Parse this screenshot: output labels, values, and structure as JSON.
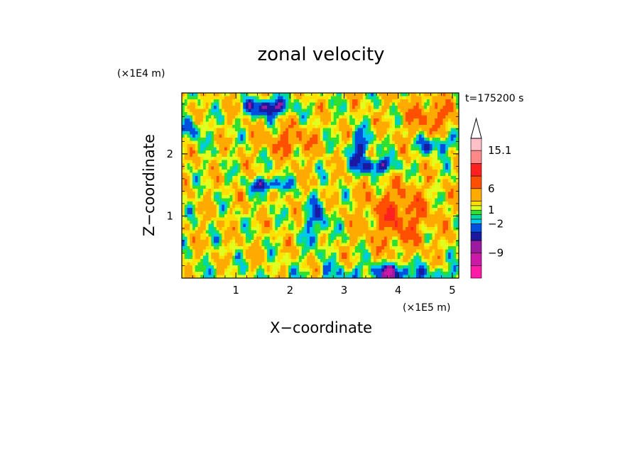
{
  "chart_data": {
    "type": "heatmap",
    "title": "zonal velocity",
    "xlabel": "X−coordinate",
    "ylabel": "Z−coordinate",
    "x_scale_label": "(×1E5 m)",
    "y_scale_label": "(×1E4 m)",
    "time_label": "t=175200 s",
    "xlim": [
      0,
      5.12
    ],
    "ylim": [
      0,
      2.98
    ],
    "x_ticks": [
      1,
      2,
      3,
      4,
      5
    ],
    "y_ticks": [
      1,
      2
    ],
    "x_tick_labels": [
      "1",
      "2",
      "3",
      "4",
      "5"
    ],
    "y_tick_labels": [
      "1",
      "2"
    ],
    "colorbar": {
      "bins": [
        {
          "lo": -15,
          "hi": -12,
          "color": "#ff1aa8"
        },
        {
          "lo": -12,
          "hi": -9,
          "color": "#cc1aa8"
        },
        {
          "lo": -9,
          "hi": -6,
          "color": "#9a1aa0"
        },
        {
          "lo": -6,
          "hi": -4,
          "color": "#1a1aa0"
        },
        {
          "lo": -4,
          "hi": -2,
          "color": "#0050e0"
        },
        {
          "lo": -2,
          "hi": -1,
          "color": "#00c8f0"
        },
        {
          "lo": -1,
          "hi": 0,
          "color": "#00d8a0"
        },
        {
          "lo": 0,
          "hi": 1,
          "color": "#30e030"
        },
        {
          "lo": 1,
          "hi": 2,
          "color": "#e0ff20"
        },
        {
          "lo": 2,
          "hi": 3,
          "color": "#ffe000"
        },
        {
          "lo": 3,
          "hi": 6,
          "color": "#ffaa00"
        },
        {
          "lo": 6,
          "hi": 9,
          "color": "#ff5000"
        },
        {
          "lo": 9,
          "hi": 12,
          "color": "#ff2020"
        },
        {
          "lo": 12,
          "hi": 15.1,
          "color": "#ff8888"
        },
        {
          "lo": 15.1,
          "hi": 18,
          "color": "#ffc0c8"
        }
      ],
      "labels": [
        "15.1",
        "6",
        "1",
        "−2",
        "−9"
      ],
      "label_values": [
        15.1,
        6,
        1,
        -2,
        -9
      ],
      "overflow_arrow": "top"
    },
    "field_note": "zonal velocity contour-fill field",
    "colors": {
      "background": "#ffffff",
      "axis": "#000000"
    }
  }
}
